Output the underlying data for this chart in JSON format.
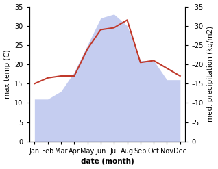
{
  "months": [
    "Jan",
    "Feb",
    "Mar",
    "Apr",
    "May",
    "Jun",
    "Jul",
    "Aug",
    "Sep",
    "Oct",
    "Nov",
    "Dec"
  ],
  "temperature": [
    15,
    16.5,
    17,
    17,
    24,
    29,
    29.5,
    31.5,
    20.5,
    21,
    19,
    17
  ],
  "precipitation": [
    11,
    11,
    13,
    18,
    25,
    32,
    33,
    30,
    21,
    21,
    16,
    16
  ],
  "temp_color": "#c0392b",
  "precip_fill_color": "#c5cdf0",
  "ylim": [
    0,
    35
  ],
  "yticks": [
    0,
    5,
    10,
    15,
    20,
    25,
    30,
    35
  ],
  "xlabel": "date (month)",
  "ylabel_left": "max temp (C)",
  "ylabel_right": "med. precipitation (kg/m2)",
  "label_fontsize": 7.5,
  "tick_fontsize": 7,
  "background_color": "#ffffff"
}
